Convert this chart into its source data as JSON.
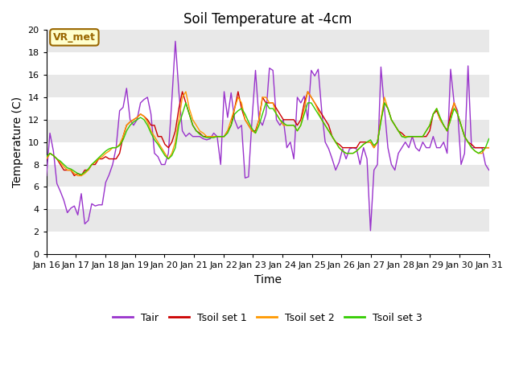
{
  "title": "Soil Temperature at -4cm",
  "xlabel": "Time",
  "ylabel": "Temperature (C)",
  "ylim": [
    0,
    20
  ],
  "xlim": [
    0,
    15
  ],
  "x_tick_labels": [
    "Jan 16",
    "Jan 17",
    "Jan 18",
    "Jan 19",
    "Jan 20",
    "Jan 21",
    "Jan 22",
    "Jan 23",
    "Jan 24",
    "Jan 25",
    "Jan 26",
    "Jan 27",
    "Jan 28",
    "Jan 29",
    "Jan 30",
    "Jan 31"
  ],
  "yticks": [
    0,
    2,
    4,
    6,
    8,
    10,
    12,
    14,
    16,
    18,
    20
  ],
  "colors": {
    "Tair": "#9933cc",
    "Tsoil1": "#cc0000",
    "Tsoil2": "#ff9900",
    "Tsoil3": "#33cc00"
  },
  "band_colors": [
    "#ffffff",
    "#e8e8e8"
  ],
  "annotation_text": "VR_met",
  "annotation_bg": "#ffffcc",
  "annotation_border": "#996600",
  "legend_labels": [
    "Tair",
    "Tsoil set 1",
    "Tsoil set 2",
    "Tsoil set 3"
  ],
  "title_fontsize": 12,
  "label_fontsize": 10,
  "tick_fontsize": 8,
  "Tair": [
    7.0,
    10.8,
    9.2,
    6.3,
    5.6,
    4.8,
    3.7,
    4.1,
    4.3,
    3.5,
    5.4,
    2.7,
    3.0,
    4.5,
    4.3,
    4.4,
    4.4,
    6.4,
    7.1,
    8.0,
    9.5,
    12.8,
    13.1,
    14.8,
    12.0,
    11.5,
    12.0,
    13.5,
    13.8,
    14.0,
    12.5,
    9.0,
    8.7,
    8.0,
    8.0,
    9.0,
    13.8,
    19.0,
    14.5,
    11.0,
    10.5,
    10.8,
    10.5,
    10.5,
    10.5,
    10.3,
    10.2,
    10.3,
    10.8,
    10.5,
    8.0,
    14.5,
    12.2,
    14.4,
    12.0,
    11.2,
    11.5,
    6.8,
    6.9,
    12.0,
    16.4,
    12.0,
    11.5,
    12.5,
    16.6,
    16.4,
    12.0,
    11.5,
    12.0,
    9.5,
    10.0,
    8.5,
    14.0,
    13.5,
    14.1,
    12.0,
    16.4,
    15.9,
    16.5,
    12.8,
    10.0,
    9.4,
    8.5,
    7.5,
    8.2,
    9.4,
    8.5,
    9.4,
    9.5,
    9.4,
    8.0,
    9.5,
    8.5,
    2.1,
    7.5,
    8.0,
    16.7,
    13.0,
    9.5,
    8.0,
    7.5,
    9.0,
    9.5,
    10.0,
    9.5,
    10.5,
    9.5,
    9.2,
    10.0,
    9.5,
    9.5,
    10.5,
    9.5,
    9.5,
    10.0,
    9.0,
    16.5,
    13.5,
    12.8,
    8.0,
    9.0,
    16.8,
    9.5,
    9.5,
    9.5,
    9.5,
    8.0,
    7.5
  ],
  "Tsoil1": [
    8.5,
    9.0,
    8.8,
    8.5,
    8.0,
    7.5,
    7.5,
    7.5,
    7.0,
    7.2,
    7.0,
    7.5,
    7.5,
    8.0,
    8.0,
    8.5,
    8.5,
    8.7,
    8.5,
    8.5,
    8.5,
    9.0,
    10.5,
    11.5,
    11.8,
    12.0,
    12.2,
    12.5,
    12.3,
    12.0,
    11.5,
    11.5,
    10.5,
    10.5,
    9.8,
    9.5,
    10.0,
    11.0,
    13.0,
    14.5,
    13.5,
    12.5,
    11.5,
    11.0,
    10.8,
    10.5,
    10.5,
    10.5,
    10.5,
    10.5,
    10.5,
    10.5,
    11.0,
    11.5,
    13.0,
    14.5,
    13.0,
    12.0,
    11.5,
    11.0,
    11.0,
    12.0,
    14.0,
    13.5,
    13.5,
    13.5,
    13.0,
    12.5,
    12.0,
    12.0,
    12.0,
    12.0,
    11.5,
    12.0,
    13.5,
    14.5,
    14.0,
    13.5,
    13.0,
    12.5,
    12.0,
    11.5,
    10.5,
    10.0,
    9.8,
    9.5,
    9.5,
    9.5,
    9.5,
    9.5,
    10.0,
    10.0,
    10.0,
    10.0,
    9.5,
    10.0,
    12.0,
    13.5,
    13.0,
    12.0,
    11.5,
    11.0,
    10.8,
    10.5,
    10.5,
    10.5,
    10.5,
    10.5,
    10.5,
    10.5,
    11.0,
    12.5,
    12.8,
    12.0,
    11.5,
    11.0,
    12.5,
    13.5,
    12.5,
    11.5,
    10.5,
    10.0,
    9.8,
    9.5,
    9.5,
    9.5,
    9.5,
    9.5
  ],
  "Tsoil2": [
    8.5,
    9.0,
    8.8,
    8.5,
    8.2,
    7.8,
    7.5,
    7.5,
    7.2,
    7.0,
    7.0,
    7.2,
    7.5,
    8.0,
    8.2,
    8.5,
    8.7,
    9.0,
    9.2,
    9.5,
    9.5,
    9.8,
    10.5,
    11.5,
    11.8,
    12.0,
    12.2,
    12.5,
    12.3,
    11.8,
    11.0,
    10.5,
    10.0,
    9.5,
    9.0,
    8.5,
    9.0,
    10.0,
    12.0,
    14.0,
    14.5,
    13.0,
    12.0,
    11.5,
    11.0,
    10.8,
    10.5,
    10.5,
    10.5,
    10.5,
    10.5,
    10.5,
    11.0,
    12.0,
    13.0,
    14.0,
    13.5,
    12.0,
    11.5,
    11.0,
    10.8,
    12.0,
    14.0,
    14.0,
    13.5,
    13.5,
    12.5,
    12.0,
    11.5,
    11.5,
    11.5,
    11.5,
    11.0,
    11.5,
    13.0,
    14.5,
    14.0,
    13.5,
    12.8,
    12.0,
    11.5,
    11.0,
    10.5,
    10.0,
    9.5,
    9.2,
    9.0,
    9.0,
    9.0,
    9.2,
    9.5,
    9.8,
    10.0,
    10.0,
    9.5,
    10.0,
    12.0,
    14.0,
    13.0,
    12.0,
    11.5,
    11.0,
    10.5,
    10.5,
    10.5,
    10.5,
    10.5,
    10.5,
    10.5,
    11.0,
    11.5,
    12.5,
    13.0,
    12.0,
    11.5,
    11.0,
    12.0,
    13.5,
    12.5,
    11.5,
    10.5,
    10.0,
    9.5,
    9.2,
    9.0,
    9.0,
    9.5,
    9.5
  ],
  "Tsoil3": [
    8.7,
    9.0,
    8.8,
    8.5,
    8.3,
    8.0,
    7.7,
    7.6,
    7.4,
    7.2,
    7.1,
    7.3,
    7.6,
    8.0,
    8.3,
    8.6,
    8.9,
    9.2,
    9.4,
    9.5,
    9.5,
    9.7,
    10.2,
    11.0,
    11.5,
    11.8,
    12.0,
    12.2,
    12.0,
    11.5,
    10.8,
    10.2,
    9.8,
    9.3,
    8.8,
    8.5,
    8.8,
    9.5,
    11.5,
    12.5,
    13.5,
    12.5,
    11.5,
    11.0,
    10.7,
    10.5,
    10.4,
    10.4,
    10.4,
    10.5,
    10.5,
    10.5,
    10.8,
    11.5,
    12.5,
    12.8,
    13.0,
    12.5,
    11.8,
    11.2,
    10.8,
    11.5,
    12.5,
    13.5,
    13.0,
    13.0,
    12.5,
    12.0,
    11.7,
    11.5,
    11.5,
    11.5,
    11.0,
    11.5,
    12.5,
    13.5,
    13.5,
    13.0,
    12.5,
    12.0,
    11.5,
    11.0,
    10.5,
    10.0,
    9.5,
    9.2,
    9.0,
    9.0,
    9.0,
    9.2,
    9.5,
    9.8,
    10.0,
    10.2,
    9.7,
    10.0,
    11.8,
    13.5,
    13.0,
    12.0,
    11.5,
    11.0,
    10.5,
    10.4,
    10.5,
    10.5,
    10.5,
    10.5,
    10.5,
    11.0,
    11.5,
    12.5,
    13.0,
    12.2,
    11.5,
    11.0,
    12.0,
    13.0,
    12.5,
    11.5,
    10.5,
    10.0,
    9.5,
    9.2,
    9.0,
    9.2,
    9.5,
    10.3
  ]
}
